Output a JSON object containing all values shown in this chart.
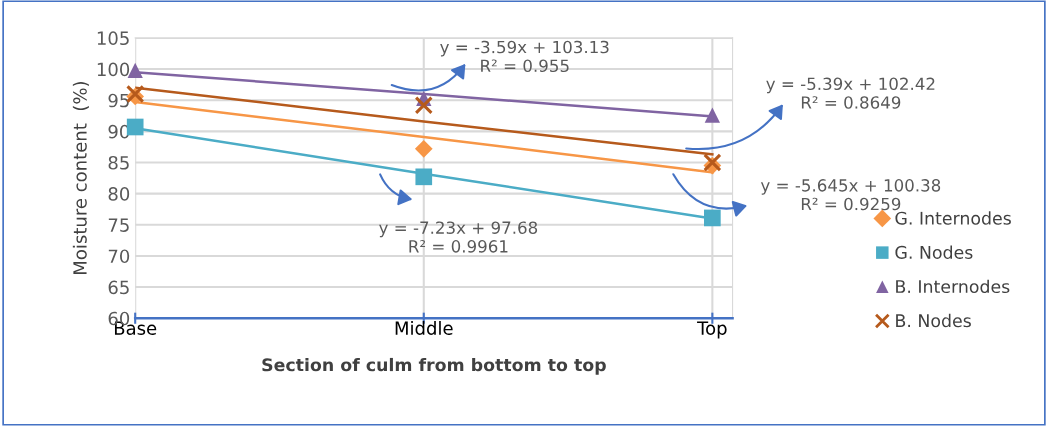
{
  "chart_data": {
    "type": "line",
    "xlabel": "Section of culm from bottom to top",
    "ylabel": "Moisture content  (%)",
    "categories": [
      "Base",
      "Middle",
      "Top"
    ],
    "series": [
      {
        "name": "G. Internodes",
        "type": "scatter",
        "marker": "diamond",
        "color": "#f79646",
        "values": [
          95.6,
          87.2,
          84.5
        ]
      },
      {
        "name": "G. Nodes",
        "type": "scatter",
        "marker": "square",
        "color": "#4bacc6",
        "values": [
          90.7,
          82.7,
          76.1
        ]
      },
      {
        "name": "B. Internodes",
        "type": "scatter",
        "marker": "triangle",
        "color": "#8064a2",
        "values": [
          99.8,
          95.3,
          92.6
        ]
      },
      {
        "name": "B. Nodes",
        "type": "scatter",
        "marker": "cross",
        "color": "#b65a1c",
        "values": [
          96.0,
          94.2,
          85.0
        ]
      },
      {
        "marker": "none",
        "color": "#f79646",
        "values": [
          94.7,
          89.1,
          83.4
        ]
      },
      {
        "marker": "none",
        "color": "#4bacc6",
        "values": [
          90.5,
          83.2,
          76.0
        ]
      },
      {
        "marker": "none",
        "color": "#8064a2",
        "values": [
          99.5,
          96.0,
          92.4
        ]
      },
      {
        "marker": "none",
        "color": "#b65a1c",
        "values": [
          97.0,
          91.6,
          86.3
        ]
      }
    ],
    "annotations": [
      "y = -3.59x + 103.13\nR² = 0.955",
      "y = -5.39x + 102.42\nR² = 0.8649",
      "y = -5.645x + 100.38\nR² = 0.9259",
      "y = -7.23x + 97.68\nR² = 0.9961"
    ],
    "ylim": [
      60,
      105
    ],
    "yticks": [
      60,
      65,
      70,
      75,
      80,
      85,
      90,
      95,
      100,
      105
    ],
    "grid": true,
    "legend": "right"
  }
}
